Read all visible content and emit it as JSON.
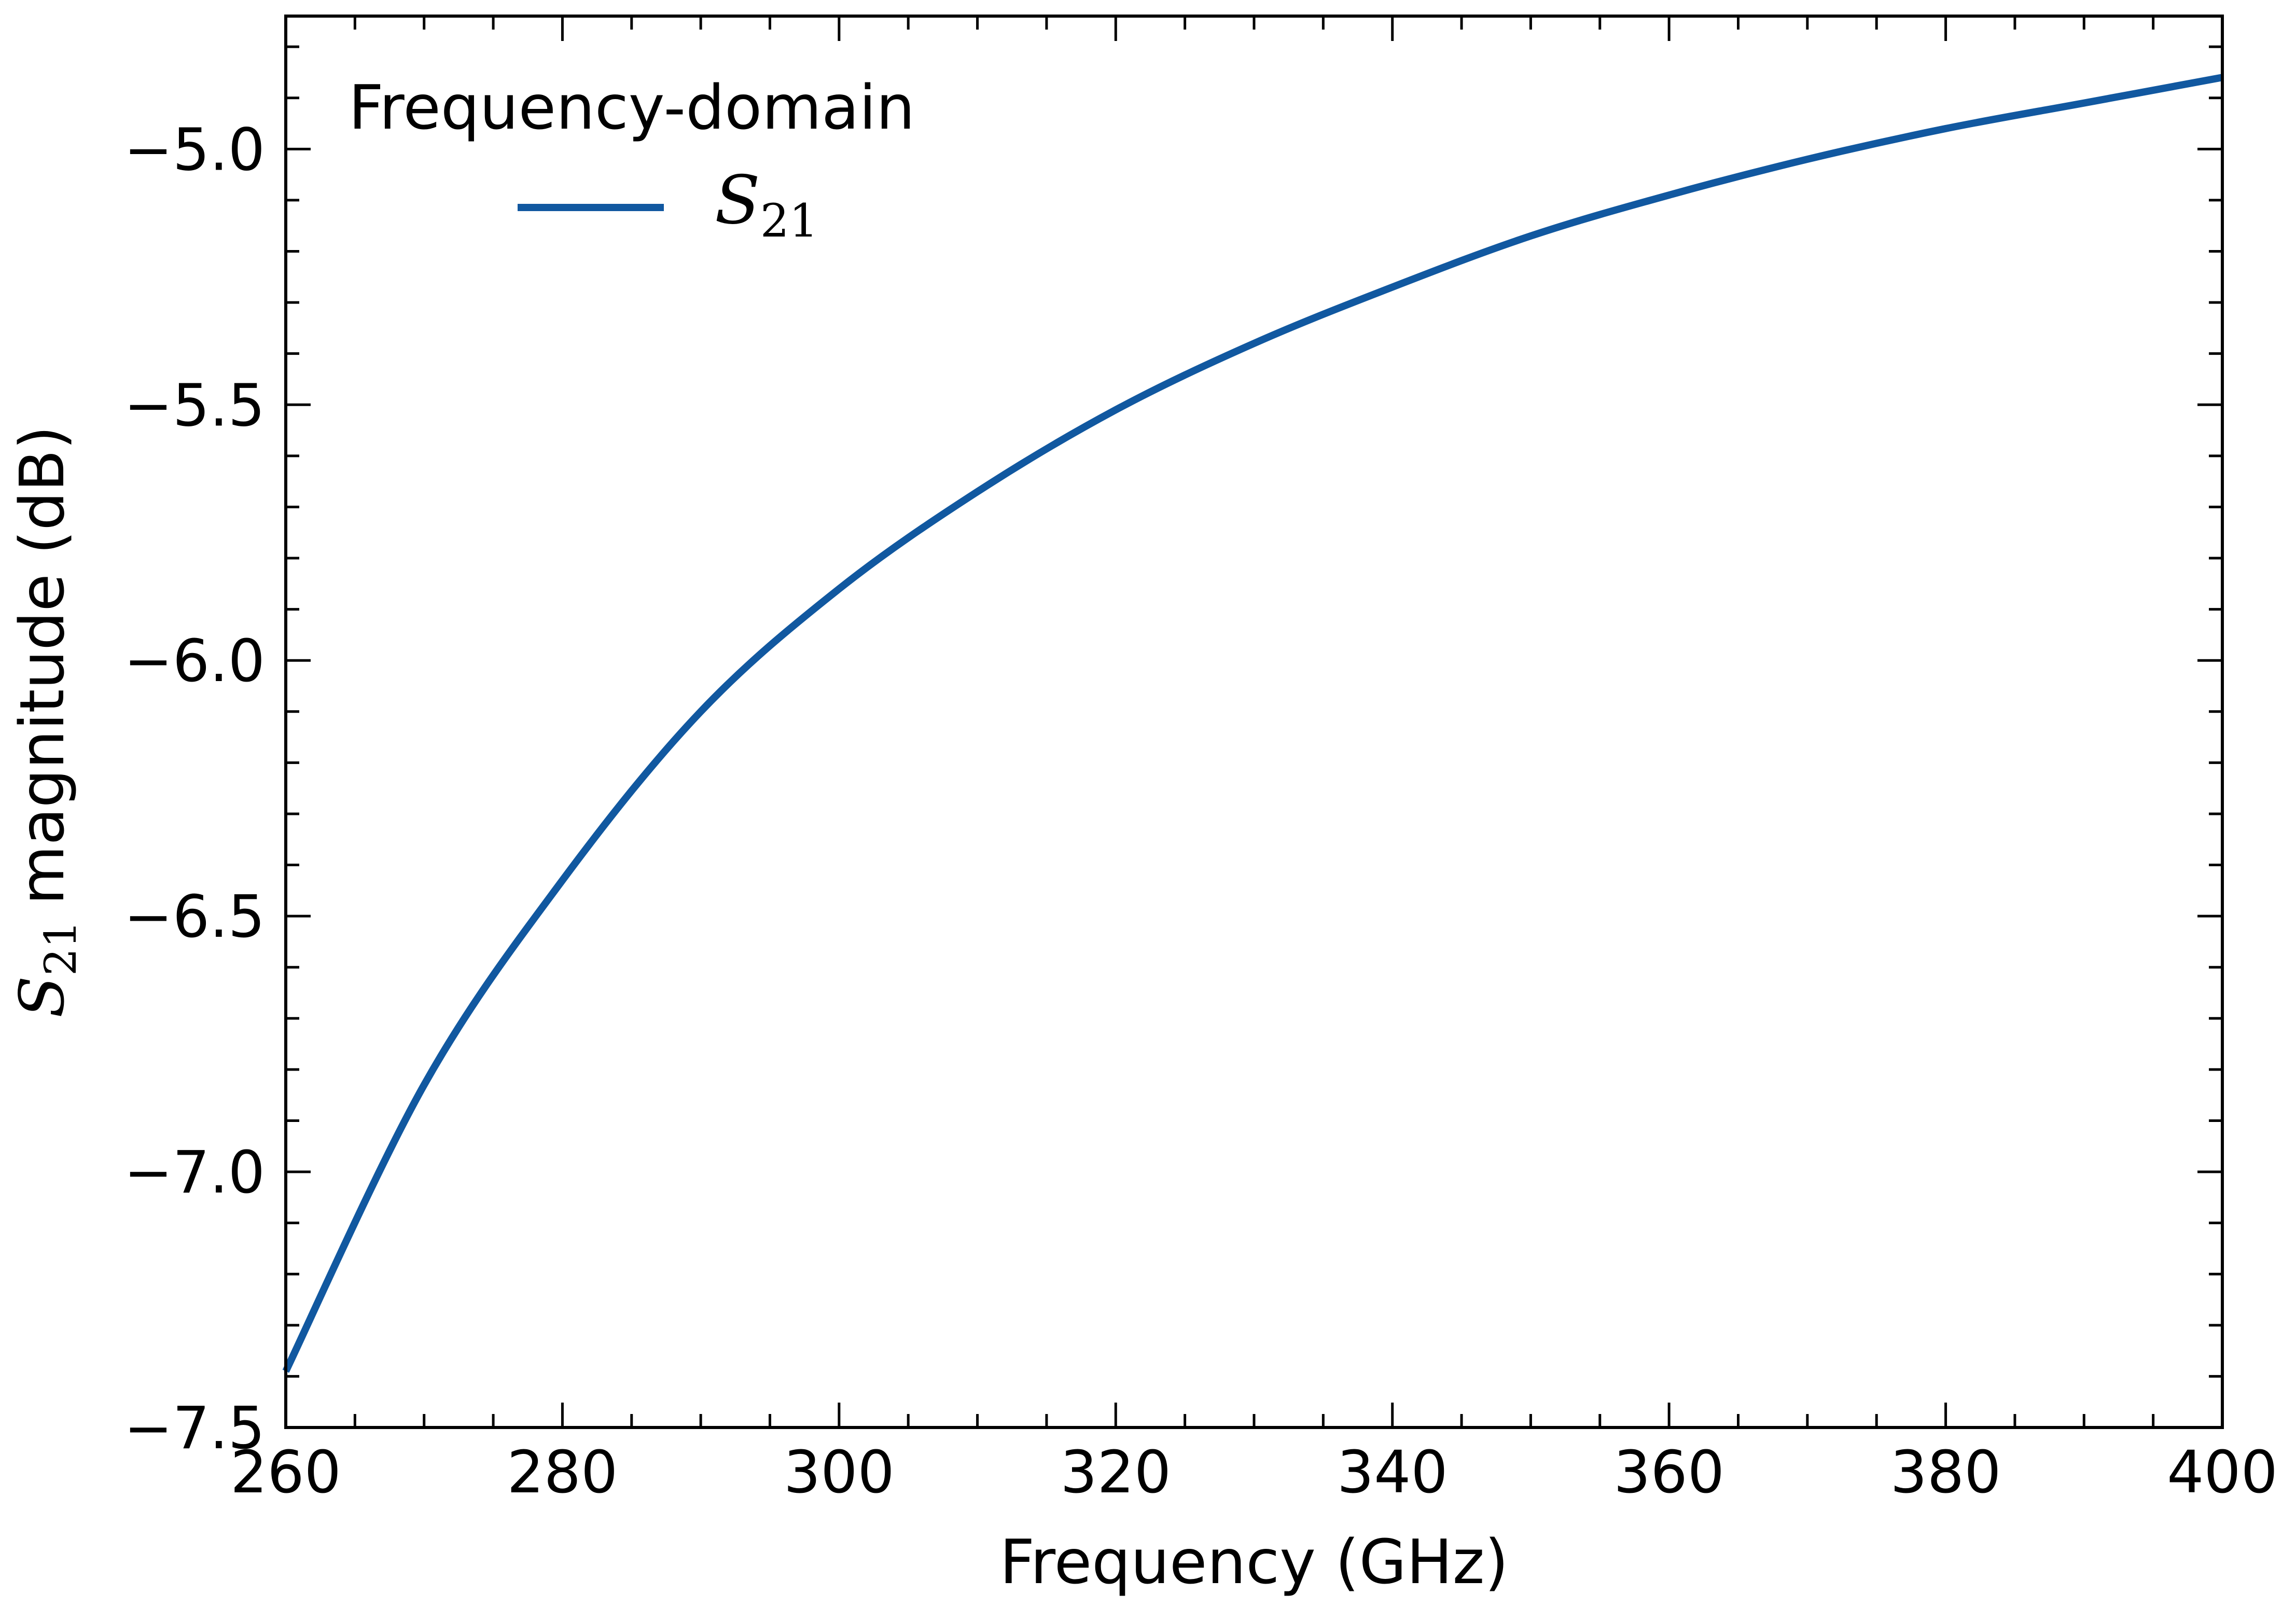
{
  "chart_data": {
    "type": "line",
    "xlabel": "Frequency (GHz)",
    "ylabel": {
      "symbol": "S",
      "subscript": "21",
      "text": "magnitude (dB)"
    },
    "xlim": [
      260,
      400
    ],
    "ylim": [
      -7.5,
      -4.74
    ],
    "x_ticks": [
      260,
      280,
      300,
      320,
      340,
      360,
      380,
      400
    ],
    "y_ticks": [
      -7.5,
      -7.0,
      -6.5,
      -6.0,
      -5.5,
      -5.0
    ],
    "x_tick_labels": [
      "260",
      "280",
      "300",
      "320",
      "340",
      "360",
      "380",
      "400"
    ],
    "y_tick_labels": [
      "−7.5",
      "−7.0",
      "−6.5",
      "−6.0",
      "−5.5",
      "−5.0"
    ],
    "grid": false,
    "legend": {
      "title": "Frequency-domain",
      "placement": "upper-left",
      "entries": [
        {
          "symbol": "S",
          "subscript": "21"
        }
      ]
    },
    "series": [
      {
        "name": "S21",
        "color": "#1158a0",
        "x": [
          260,
          270,
          280,
          290,
          300,
          310,
          320,
          330,
          340,
          350,
          360,
          370,
          380,
          390,
          400
        ],
        "y": [
          -7.39,
          -6.83,
          -6.43,
          -6.1,
          -5.86,
          -5.67,
          -5.51,
          -5.38,
          -5.27,
          -5.17,
          -5.09,
          -5.02,
          -4.96,
          -4.91,
          -4.86
        ]
      }
    ]
  }
}
